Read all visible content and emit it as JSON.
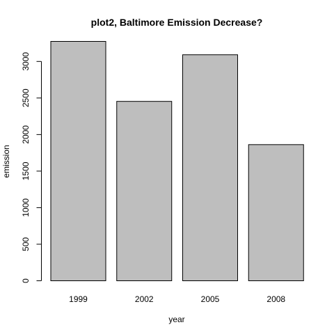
{
  "chart_data": {
    "type": "bar",
    "title": "plot2, Baltimore Emission Decrease?",
    "xlabel": "year",
    "ylabel": "emission",
    "categories": [
      "1999",
      "2002",
      "2005",
      "2008"
    ],
    "values": [
      3274.2,
      2453.9,
      3091.4,
      1862.3
    ],
    "ylim": [
      0,
      3274.2
    ],
    "y_ticks": [
      0,
      500,
      1000,
      1500,
      2000,
      2500,
      3000
    ],
    "y_tick_labels": [
      "0",
      "500",
      "1000",
      "1500",
      "2000",
      "2500",
      "3000"
    ],
    "bar_color": "#bebebe",
    "bar_stroke": "#000000",
    "grid": false,
    "legend": "none"
  }
}
